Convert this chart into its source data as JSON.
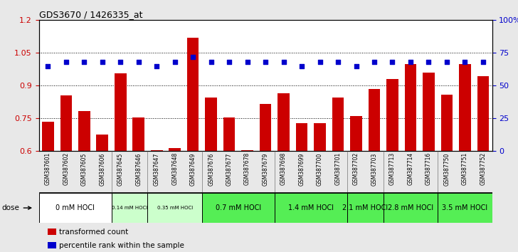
{
  "title": "GDS3670 / 1426335_at",
  "samples": [
    "GSM387601",
    "GSM387602",
    "GSM387605",
    "GSM387606",
    "GSM387645",
    "GSM387646",
    "GSM387647",
    "GSM387648",
    "GSM387649",
    "GSM387676",
    "GSM387677",
    "GSM387678",
    "GSM387679",
    "GSM387698",
    "GSM387699",
    "GSM387700",
    "GSM387701",
    "GSM387702",
    "GSM387703",
    "GSM387713",
    "GSM387714",
    "GSM387716",
    "GSM387750",
    "GSM387751",
    "GSM387752"
  ],
  "bar_values": [
    0.735,
    0.855,
    0.785,
    0.675,
    0.955,
    0.755,
    0.605,
    0.615,
    1.12,
    0.845,
    0.755,
    0.605,
    0.815,
    0.865,
    0.73,
    0.73,
    0.845,
    0.76,
    0.885,
    0.93,
    1.0,
    0.96,
    0.86,
    1.0,
    0.945
  ],
  "dot_percentiles": [
    65,
    68,
    68,
    68,
    68,
    68,
    65,
    68,
    72,
    68,
    68,
    68,
    68,
    68,
    65,
    68,
    68,
    65,
    68,
    68,
    68,
    68,
    68,
    68,
    68
  ],
  "dose_groups": [
    {
      "label": "0 mM HOCl",
      "start": 0,
      "end": 4,
      "color": "#ffffff",
      "fontsize": 8
    },
    {
      "label": "0.14 mM HOCl",
      "start": 4,
      "end": 6,
      "color": "#ccffcc",
      "fontsize": 6
    },
    {
      "label": "0.35 mM HOCl",
      "start": 6,
      "end": 9,
      "color": "#ccffcc",
      "fontsize": 6
    },
    {
      "label": "0.7 mM HOCl",
      "start": 9,
      "end": 13,
      "color": "#55ee55",
      "fontsize": 8
    },
    {
      "label": "1.4 mM HOCl",
      "start": 13,
      "end": 17,
      "color": "#55ee55",
      "fontsize": 8
    },
    {
      "label": "2.1 mM HOCl",
      "start": 17,
      "end": 19,
      "color": "#55ee55",
      "fontsize": 8
    },
    {
      "label": "2.8 mM HOCl",
      "start": 19,
      "end": 22,
      "color": "#55ee55",
      "fontsize": 8
    },
    {
      "label": "3.5 mM HOCl",
      "start": 22,
      "end": 25,
      "color": "#55ee55",
      "fontsize": 8
    }
  ],
  "bar_color": "#cc0000",
  "dot_color": "#0000cc",
  "ylim_left": [
    0.6,
    1.2
  ],
  "ylim_right": [
    0,
    100
  ],
  "yticks_left": [
    0.6,
    0.75,
    0.9,
    1.05,
    1.2
  ],
  "ytick_labels_left": [
    "0.6",
    "0.75",
    "0.9",
    "1.05",
    "1.2"
  ],
  "yticks_right": [
    0,
    25,
    50,
    75,
    100
  ],
  "ytick_labels_right": [
    "0",
    "25",
    "50",
    "75",
    "100%"
  ],
  "background_color": "#e8e8e8",
  "legend_transformed": "transformed count",
  "legend_percentile": "percentile rank within the sample"
}
